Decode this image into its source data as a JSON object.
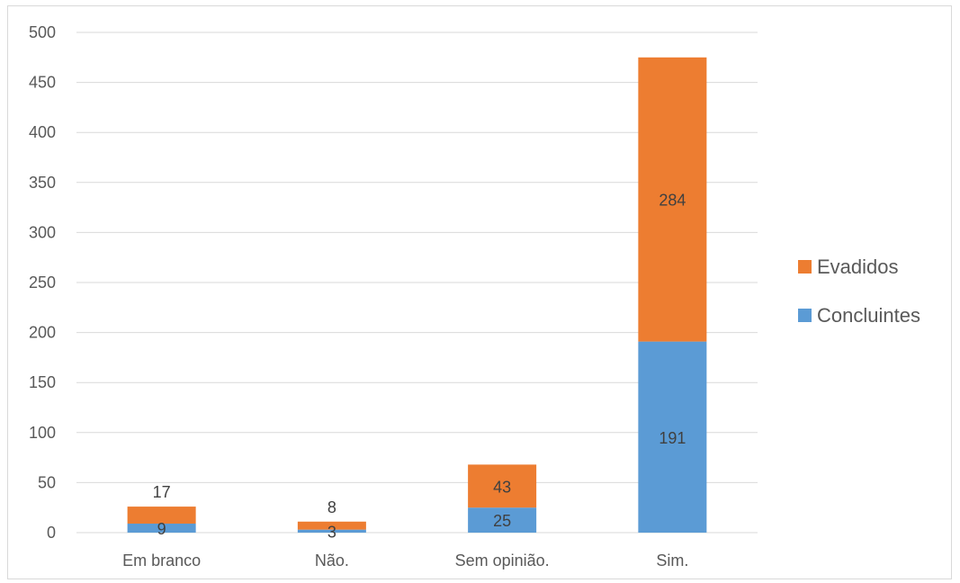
{
  "chart_data": {
    "type": "bar",
    "stacked": true,
    "title": "",
    "xlabel": "",
    "ylabel": "",
    "categories": [
      "Em branco",
      "Não.",
      "Sem opinião.",
      "Sim."
    ],
    "series": [
      {
        "name": "Concluintes",
        "values": [
          9,
          3,
          25,
          191
        ],
        "color": "#5b9bd5"
      },
      {
        "name": "Evadidos",
        "values": [
          17,
          8,
          43,
          284
        ],
        "color": "#ed7d31"
      }
    ],
    "ylim": [
      0,
      500
    ],
    "yticks": [
      0,
      50,
      100,
      150,
      200,
      250,
      300,
      350,
      400,
      450,
      500
    ],
    "grid": true,
    "legend": "right",
    "data_labels": true
  }
}
